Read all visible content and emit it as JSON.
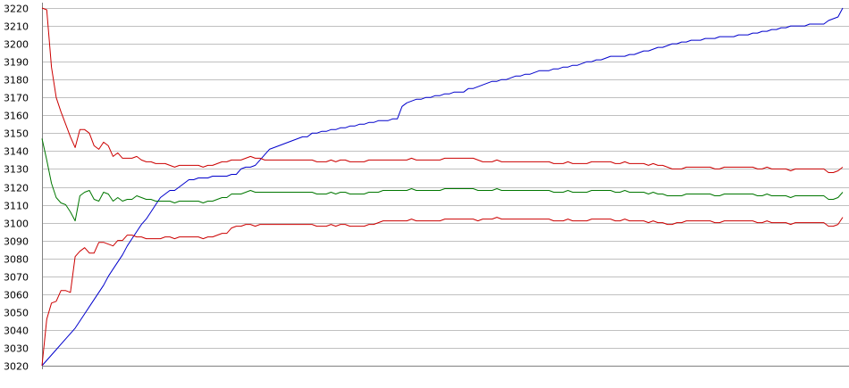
{
  "chart_data": {
    "type": "line",
    "title": "",
    "xlabel": "",
    "ylabel": "",
    "ylim": [
      3020,
      3220
    ],
    "yticks": [
      3020,
      3030,
      3040,
      3050,
      3060,
      3070,
      3080,
      3090,
      3100,
      3110,
      3120,
      3130,
      3140,
      3150,
      3160,
      3170,
      3180,
      3190,
      3200,
      3210,
      3220
    ],
    "grid": true,
    "legend": "none",
    "axis_color": "#808080",
    "grid_color": "#c0c0c0",
    "series": [
      {
        "color": "#0000cc",
        "values": [
          3020,
          3023,
          3026,
          3029,
          3032,
          3035,
          3038,
          3041,
          3045,
          3049,
          3053,
          3057,
          3061,
          3065,
          3070,
          3074,
          3078,
          3082,
          3087,
          3091,
          3095,
          3099,
          3102,
          3106,
          3110,
          3114,
          3116,
          3118,
          3118,
          3120,
          3122,
          3124,
          3124,
          3125,
          3125,
          3125,
          3126,
          3126,
          3126,
          3126,
          3127,
          3127,
          3130,
          3131,
          3131,
          3132,
          3135,
          3138,
          3141,
          3142,
          3143,
          3144,
          3145,
          3146,
          3147,
          3148,
          3148,
          3150,
          3150,
          3151,
          3151,
          3152,
          3152,
          3153,
          3153,
          3154,
          3154,
          3155,
          3155,
          3156,
          3156,
          3157,
          3157,
          3157,
          3158,
          3158,
          3165,
          3167,
          3168,
          3169,
          3169,
          3170,
          3170,
          3171,
          3171,
          3172,
          3172,
          3173,
          3173,
          3173,
          3175,
          3175,
          3176,
          3177,
          3178,
          3179,
          3179,
          3180,
          3180,
          3181,
          3182,
          3182,
          3183,
          3183,
          3184,
          3185,
          3185,
          3185,
          3186,
          3186,
          3187,
          3187,
          3188,
          3188,
          3189,
          3190,
          3190,
          3191,
          3191,
          3192,
          3193,
          3193,
          3193,
          3193,
          3194,
          3194,
          3195,
          3196,
          3196,
          3197,
          3198,
          3198,
          3199,
          3200,
          3200,
          3201,
          3201,
          3202,
          3202,
          3202,
          3203,
          3203,
          3203,
          3204,
          3204,
          3204,
          3204,
          3205,
          3205,
          3205,
          3206,
          3206,
          3207,
          3207,
          3208,
          3208,
          3209,
          3209,
          3210,
          3210,
          3210,
          3210,
          3211,
          3211,
          3211,
          3211,
          3213,
          3214,
          3215,
          3220
        ]
      },
      {
        "color": "#cc0000",
        "values": [
          3220,
          3219,
          3187,
          3170,
          3162,
          3155,
          3148,
          3142,
          3152,
          3152,
          3150,
          3143,
          3141,
          3145,
          3143,
          3137,
          3139,
          3136,
          3136,
          3136,
          3137,
          3135,
          3134,
          3134,
          3133,
          3133,
          3133,
          3132,
          3131,
          3132,
          3132,
          3132,
          3132,
          3132,
          3131,
          3132,
          3132,
          3133,
          3134,
          3134,
          3135,
          3135,
          3135,
          3136,
          3137,
          3136,
          3136,
          3135,
          3135,
          3135,
          3135,
          3135,
          3135,
          3135,
          3135,
          3135,
          3135,
          3135,
          3134,
          3134,
          3134,
          3135,
          3134,
          3135,
          3135,
          3134,
          3134,
          3134,
          3134,
          3135,
          3135,
          3135,
          3135,
          3135,
          3135,
          3135,
          3135,
          3135,
          3136,
          3135,
          3135,
          3135,
          3135,
          3135,
          3135,
          3136,
          3136,
          3136,
          3136,
          3136,
          3136,
          3136,
          3135,
          3134,
          3134,
          3134,
          3135,
          3134,
          3134,
          3134,
          3134,
          3134,
          3134,
          3134,
          3134,
          3134,
          3134,
          3134,
          3133,
          3133,
          3133,
          3134,
          3133,
          3133,
          3133,
          3133,
          3134,
          3134,
          3134,
          3134,
          3134,
          3133,
          3133,
          3134,
          3133,
          3133,
          3133,
          3133,
          3132,
          3133,
          3132,
          3132,
          3131,
          3130,
          3130,
          3130,
          3131,
          3131,
          3131,
          3131,
          3131,
          3131,
          3130,
          3130,
          3131,
          3131,
          3131,
          3131,
          3131,
          3131,
          3131,
          3130,
          3130,
          3131,
          3130,
          3130,
          3130,
          3130,
          3129,
          3130,
          3130,
          3130,
          3130,
          3130,
          3130,
          3130,
          3128,
          3128,
          3129,
          3131
        ]
      },
      {
        "color": "#007700",
        "values": [
          3147,
          3135,
          3122,
          3114,
          3111,
          3110,
          3106,
          3101,
          3115,
          3117,
          3118,
          3113,
          3112,
          3117,
          3116,
          3112,
          3114,
          3112,
          3113,
          3113,
          3115,
          3114,
          3113,
          3113,
          3112,
          3112,
          3112,
          3112,
          3111,
          3112,
          3112,
          3112,
          3112,
          3112,
          3111,
          3112,
          3112,
          3113,
          3114,
          3114,
          3116,
          3116,
          3116,
          3117,
          3118,
          3117,
          3117,
          3117,
          3117,
          3117,
          3117,
          3117,
          3117,
          3117,
          3117,
          3117,
          3117,
          3117,
          3116,
          3116,
          3116,
          3117,
          3116,
          3117,
          3117,
          3116,
          3116,
          3116,
          3116,
          3117,
          3117,
          3117,
          3118,
          3118,
          3118,
          3118,
          3118,
          3118,
          3119,
          3118,
          3118,
          3118,
          3118,
          3118,
          3118,
          3119,
          3119,
          3119,
          3119,
          3119,
          3119,
          3119,
          3118,
          3118,
          3118,
          3118,
          3119,
          3118,
          3118,
          3118,
          3118,
          3118,
          3118,
          3118,
          3118,
          3118,
          3118,
          3118,
          3117,
          3117,
          3117,
          3118,
          3117,
          3117,
          3117,
          3117,
          3118,
          3118,
          3118,
          3118,
          3118,
          3117,
          3117,
          3118,
          3117,
          3117,
          3117,
          3117,
          3116,
          3117,
          3116,
          3116,
          3115,
          3115,
          3115,
          3115,
          3116,
          3116,
          3116,
          3116,
          3116,
          3116,
          3115,
          3115,
          3116,
          3116,
          3116,
          3116,
          3116,
          3116,
          3116,
          3115,
          3115,
          3116,
          3115,
          3115,
          3115,
          3115,
          3114,
          3115,
          3115,
          3115,
          3115,
          3115,
          3115,
          3115,
          3113,
          3113,
          3114,
          3117
        ]
      },
      {
        "color": "#cc0000",
        "values": [
          3020,
          3046,
          3055,
          3056,
          3062,
          3062,
          3061,
          3081,
          3084,
          3086,
          3083,
          3083,
          3089,
          3089,
          3088,
          3087,
          3090,
          3090,
          3093,
          3093,
          3092,
          3092,
          3091,
          3091,
          3091,
          3091,
          3092,
          3092,
          3091,
          3092,
          3092,
          3092,
          3092,
          3092,
          3091,
          3092,
          3092,
          3093,
          3094,
          3094,
          3097,
          3098,
          3098,
          3099,
          3099,
          3098,
          3099,
          3099,
          3099,
          3099,
          3099,
          3099,
          3099,
          3099,
          3099,
          3099,
          3099,
          3099,
          3098,
          3098,
          3098,
          3099,
          3098,
          3099,
          3099,
          3098,
          3098,
          3098,
          3098,
          3099,
          3099,
          3100,
          3101,
          3101,
          3101,
          3101,
          3101,
          3101,
          3102,
          3101,
          3101,
          3101,
          3101,
          3101,
          3101,
          3102,
          3102,
          3102,
          3102,
          3102,
          3102,
          3102,
          3101,
          3102,
          3102,
          3102,
          3103,
          3102,
          3102,
          3102,
          3102,
          3102,
          3102,
          3102,
          3102,
          3102,
          3102,
          3102,
          3101,
          3101,
          3101,
          3102,
          3101,
          3101,
          3101,
          3101,
          3102,
          3102,
          3102,
          3102,
          3102,
          3101,
          3101,
          3102,
          3101,
          3101,
          3101,
          3101,
          3100,
          3101,
          3100,
          3100,
          3099,
          3099,
          3100,
          3100,
          3101,
          3101,
          3101,
          3101,
          3101,
          3101,
          3100,
          3100,
          3101,
          3101,
          3101,
          3101,
          3101,
          3101,
          3101,
          3100,
          3100,
          3101,
          3100,
          3100,
          3100,
          3100,
          3099,
          3100,
          3100,
          3100,
          3100,
          3100,
          3100,
          3100,
          3098,
          3098,
          3099,
          3103
        ]
      }
    ]
  }
}
